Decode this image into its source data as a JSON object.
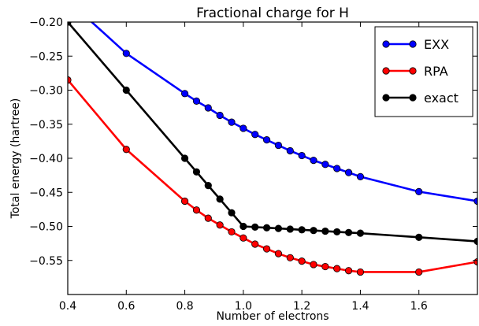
{
  "chart_data": {
    "type": "line",
    "title": "Fractional charge for H",
    "xlabel": "Number of electrons",
    "ylabel": "Total energy (hartree)",
    "xlim": [
      0.4,
      1.8
    ],
    "ylim": [
      -0.6,
      -0.2
    ],
    "xticks": [
      0.4,
      0.6,
      0.8,
      1.0,
      1.2,
      1.4,
      1.6
    ],
    "xtick_labels": [
      "0.4",
      "0.6",
      "0.8",
      "1.0",
      "1.2",
      "1.4",
      "1.6"
    ],
    "yticks": [
      -0.55,
      -0.5,
      -0.45,
      -0.4,
      -0.35,
      -0.3,
      -0.25,
      -0.2
    ],
    "ytick_labels": [
      "−0.55",
      "−0.50",
      "−0.45",
      "−0.40",
      "−0.35",
      "−0.30",
      "−0.25",
      "−0.20"
    ],
    "grid": false,
    "legend_position": "top-right",
    "series": [
      {
        "name": "EXX",
        "color": "#0000ff",
        "points": [
          [
            0.4,
            -0.168
          ],
          [
            0.6,
            -0.246
          ],
          [
            0.8,
            -0.305
          ],
          [
            0.84,
            -0.316
          ],
          [
            0.88,
            -0.326
          ],
          [
            0.92,
            -0.337
          ],
          [
            0.96,
            -0.347
          ],
          [
            1.0,
            -0.356
          ],
          [
            1.04,
            -0.365
          ],
          [
            1.08,
            -0.373
          ],
          [
            1.12,
            -0.381
          ],
          [
            1.16,
            -0.389
          ],
          [
            1.2,
            -0.396
          ],
          [
            1.24,
            -0.403
          ],
          [
            1.28,
            -0.409
          ],
          [
            1.32,
            -0.415
          ],
          [
            1.36,
            -0.421
          ],
          [
            1.4,
            -0.427
          ],
          [
            1.6,
            -0.449
          ],
          [
            1.8,
            -0.463
          ]
        ]
      },
      {
        "name": "RPA",
        "color": "#ff0000",
        "points": [
          [
            0.4,
            -0.285
          ],
          [
            0.6,
            -0.387
          ],
          [
            0.8,
            -0.463
          ],
          [
            0.84,
            -0.476
          ],
          [
            0.88,
            -0.488
          ],
          [
            0.92,
            -0.498
          ],
          [
            0.96,
            -0.508
          ],
          [
            1.0,
            -0.517
          ],
          [
            1.04,
            -0.526
          ],
          [
            1.08,
            -0.533
          ],
          [
            1.12,
            -0.54
          ],
          [
            1.16,
            -0.546
          ],
          [
            1.2,
            -0.551
          ],
          [
            1.24,
            -0.556
          ],
          [
            1.28,
            -0.559
          ],
          [
            1.32,
            -0.562
          ],
          [
            1.36,
            -0.565
          ],
          [
            1.4,
            -0.567
          ],
          [
            1.6,
            -0.567
          ],
          [
            1.8,
            -0.552
          ]
        ]
      },
      {
        "name": "exact",
        "color": "#000000",
        "points": [
          [
            0.4,
            -0.2
          ],
          [
            0.6,
            -0.3
          ],
          [
            0.8,
            -0.4
          ],
          [
            0.84,
            -0.42
          ],
          [
            0.88,
            -0.44
          ],
          [
            0.92,
            -0.46
          ],
          [
            0.96,
            -0.48
          ],
          [
            1.0,
            -0.5
          ],
          [
            1.04,
            -0.501
          ],
          [
            1.08,
            -0.502
          ],
          [
            1.12,
            -0.503
          ],
          [
            1.16,
            -0.504
          ],
          [
            1.2,
            -0.505
          ],
          [
            1.24,
            -0.506
          ],
          [
            1.28,
            -0.507
          ],
          [
            1.32,
            -0.508
          ],
          [
            1.36,
            -0.509
          ],
          [
            1.4,
            -0.51
          ],
          [
            1.6,
            -0.516
          ],
          [
            1.8,
            -0.522
          ]
        ]
      }
    ]
  }
}
